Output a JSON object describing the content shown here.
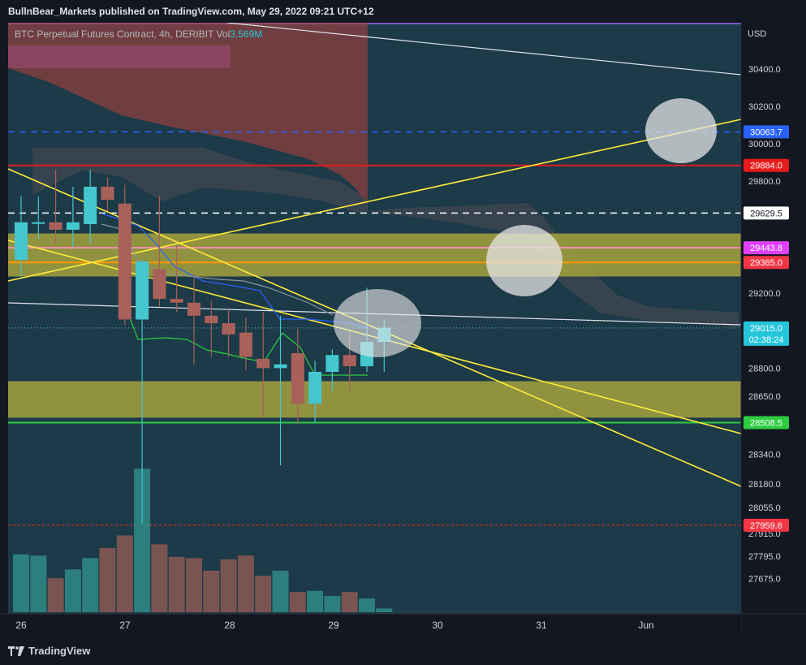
{
  "header": {
    "publish_line": "BullnBear_Markets published on TradingView.com, May 29, 2022 09:21 UTC+12"
  },
  "legend": {
    "symbol": "BTC Perpetual Futures Contract, 4h, DERIBIT",
    "vol_label": "Vol",
    "vol_value": "3.569M"
  },
  "footer": {
    "brand": "TradingView"
  },
  "colors": {
    "background": "#1c3a48",
    "up": "#45c7cf",
    "down": "#a8615a",
    "zone": "#a5a23e",
    "cloud": "#a8413c",
    "kumo_gray": "#3c4550"
  },
  "chart_data": {
    "type": "candlestick",
    "currency": "USD",
    "y_ticks": [
      "30400.0",
      "30200.0",
      "30000.0",
      "29800.0",
      "29200.0",
      "28800.0",
      "28650.0",
      "28340.0",
      "28180.0",
      "28055.0",
      "27915.0",
      "27795.0",
      "27675.0"
    ],
    "x_ticks": [
      "26",
      "27",
      "28",
      "29",
      "30",
      "31",
      "Jun"
    ],
    "price_labels": [
      {
        "text": "30063.7",
        "color": "#2962ff"
      },
      {
        "text": "29884.0",
        "color": "#e51b1b"
      },
      {
        "text": "29629.5",
        "color": "#ffffff"
      },
      {
        "text": "29443.8",
        "color": "#e040fb"
      },
      {
        "text": "29365.0",
        "color": "#f23645"
      },
      {
        "text": "29015.0",
        "color": "#26c6da"
      },
      {
        "text": "02:38:24",
        "color": "#26c6da"
      },
      {
        "text": "28508.5",
        "color": "#2ecc40"
      },
      {
        "text": "27959.6",
        "color": "#f23645"
      }
    ],
    "horizontal_levels": [
      {
        "price": 30063.7,
        "style": "dashed",
        "color": "#2962ff"
      },
      {
        "price": 29884.0,
        "style": "solid",
        "color": "#e51b1b"
      },
      {
        "price": 29629.5,
        "style": "dashed",
        "color": "#ffffff"
      },
      {
        "price": 29443.8,
        "style": "solid",
        "color": "#f48fb1"
      },
      {
        "price": 29365.0,
        "style": "solid",
        "color": "#ff9800"
      },
      {
        "price": 28508.5,
        "style": "solid",
        "color": "#2ecc40"
      },
      {
        "price": 27959.6,
        "style": "dotted",
        "color": "#c62828"
      }
    ],
    "zones": [
      {
        "from": 29290,
        "to": 29520
      },
      {
        "from": 28535,
        "to": 28730
      }
    ],
    "candles": [
      {
        "o": 29380,
        "h": 29720,
        "l": 29290,
        "c": 29580
      },
      {
        "o": 29580,
        "h": 29720,
        "l": 29490,
        "c": 29580
      },
      {
        "o": 29580,
        "h": 29860,
        "l": 29470,
        "c": 29540
      },
      {
        "o": 29540,
        "h": 29770,
        "l": 29450,
        "c": 29580
      },
      {
        "o": 29570,
        "h": 29860,
        "l": 29470,
        "c": 29770
      },
      {
        "o": 29770,
        "h": 29820,
        "l": 29640,
        "c": 29700
      },
      {
        "o": 29680,
        "h": 29780,
        "l": 29030,
        "c": 29060
      },
      {
        "o": 29060,
        "h": 29380,
        "l": 27970,
        "c": 29370
      },
      {
        "o": 29330,
        "h": 29720,
        "l": 29130,
        "c": 29170
      },
      {
        "o": 29170,
        "h": 29460,
        "l": 29100,
        "c": 29150
      },
      {
        "o": 29150,
        "h": 29300,
        "l": 28820,
        "c": 29080
      },
      {
        "o": 29080,
        "h": 29160,
        "l": 28860,
        "c": 29040
      },
      {
        "o": 29040,
        "h": 29120,
        "l": 28860,
        "c": 28980
      },
      {
        "o": 28990,
        "h": 29070,
        "l": 28790,
        "c": 28860
      },
      {
        "o": 28850,
        "h": 29100,
        "l": 28540,
        "c": 28800
      },
      {
        "o": 28800,
        "h": 29080,
        "l": 28280,
        "c": 28820
      },
      {
        "o": 28880,
        "h": 29010,
        "l": 28500,
        "c": 28610
      },
      {
        "o": 28610,
        "h": 28840,
        "l": 28510,
        "c": 28780
      },
      {
        "o": 28780,
        "h": 28900,
        "l": 28680,
        "c": 28870
      },
      {
        "o": 28870,
        "h": 28990,
        "l": 28680,
        "c": 28810
      },
      {
        "o": 28810,
        "h": 29230,
        "l": 28780,
        "c": 28940
      },
      {
        "o": 28940,
        "h": 29060,
        "l": 28780,
        "c": 29015
      }
    ],
    "volumes": [
      46,
      45,
      27,
      34,
      43,
      51,
      61,
      114,
      54,
      44,
      43,
      33,
      42,
      45,
      29,
      33,
      16,
      17,
      13,
      16,
      11,
      3
    ]
  }
}
